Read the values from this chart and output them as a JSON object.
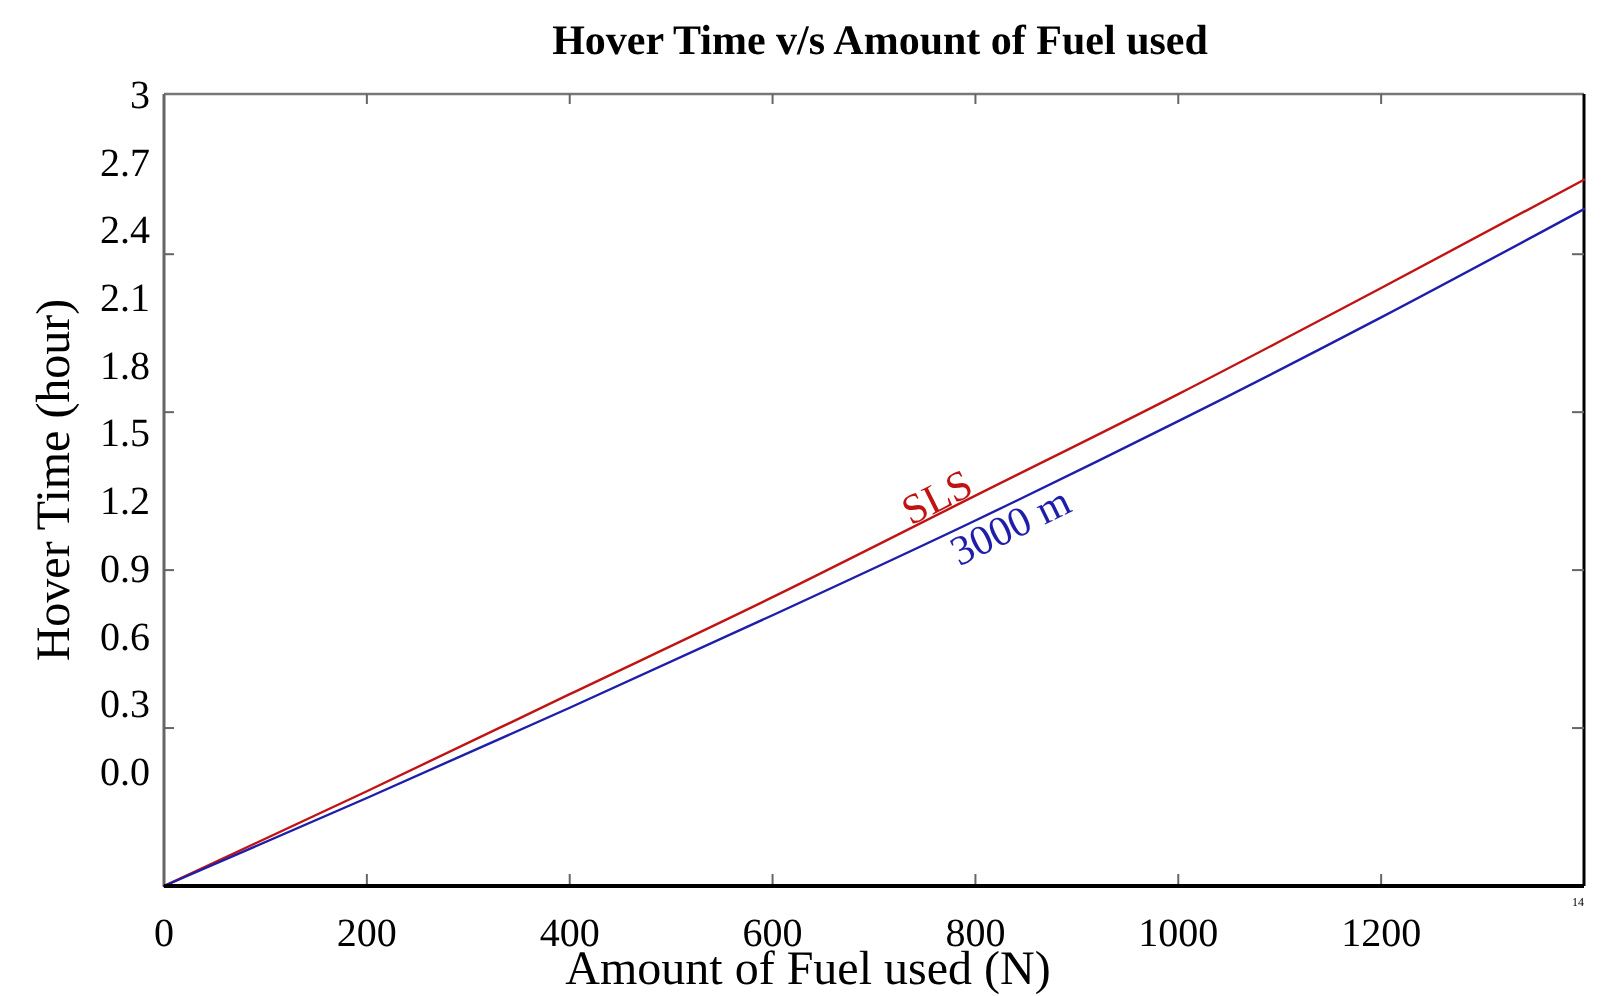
{
  "chart_data": {
    "type": "line",
    "title": "Hover Time v/s Amount of Fuel used",
    "xlabel": "Amount of Fuel used (N)",
    "ylabel": "Hover Time (hour)",
    "x": [
      0,
      200,
      400,
      600,
      800,
      1000,
      1200,
      1400
    ],
    "series": [
      {
        "name": "SLS",
        "color": "#c01414",
        "values": [
          -0.51,
          -0.09,
          0.34,
          0.77,
          1.22,
          1.67,
          2.14,
          2.62
        ]
      },
      {
        "name": "3000 m",
        "color": "#1e1eaa",
        "values": [
          -0.51,
          -0.12,
          0.28,
          0.69,
          1.11,
          1.55,
          2.01,
          2.49
        ]
      }
    ],
    "xlim": [
      0,
      1400
    ],
    "xticks": [
      0,
      200,
      400,
      600,
      800,
      1000,
      1200
    ],
    "ylim": [
      -0.51,
      3
    ],
    "yticks": [
      {
        "value": 0,
        "label": "0.0"
      },
      {
        "value": 0.19,
        "label": null
      },
      0.3,
      0.6,
      {
        "value": 0.89,
        "label": null
      },
      0.9,
      1.2,
      1.5,
      {
        "value": 1.59,
        "label": null
      },
      1.8,
      2.1,
      {
        "value": 2.29,
        "label": null
      },
      2.4,
      2.7,
      3
    ],
    "annotations": [
      "14"
    ],
    "line_style": "solid"
  }
}
